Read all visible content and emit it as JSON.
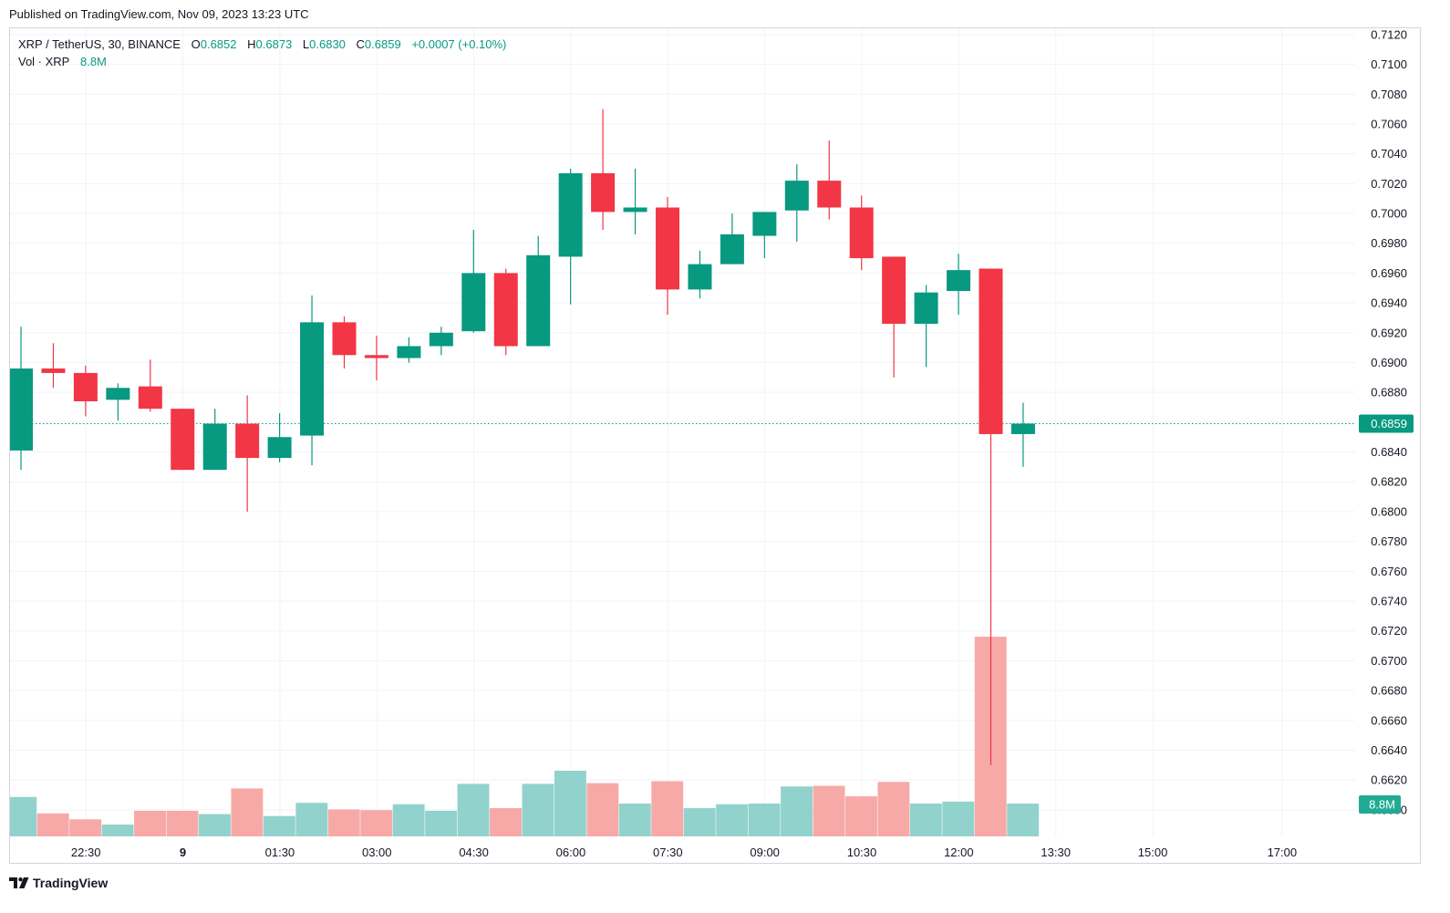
{
  "published": "Published on TradingView.com, Nov 09, 2023 13:23 UTC",
  "footer": {
    "brand": "TradingView",
    "logo_icon": "tradingview-logo-icon"
  },
  "legend": {
    "symbol": "XRP / TetherUS, 30, BINANCE",
    "open_label": "O",
    "open": "0.6852",
    "high_label": "H",
    "high": "0.6873",
    "low_label": "L",
    "low": "0.6830",
    "close_label": "C",
    "close": "0.6859",
    "change": "+0.0007 (+0.10%)",
    "vol_label": "Vol · XRP",
    "vol": "8.8M"
  },
  "colors": {
    "up": "#089981",
    "down": "#f23645",
    "vol_up": "#92d2cc",
    "vol_down": "#f7a9a7",
    "grid": "#f0f3fa",
    "last_price_line": "#089981"
  },
  "chart_data": {
    "type": "candlestick",
    "symbol": "XRP / TetherUS",
    "interval": "30",
    "exchange": "BINANCE",
    "price_badge": "0.6859",
    "volume_badge": "8.8M",
    "y_axis_ticks": [
      "0.7120",
      "0.7100",
      "0.7080",
      "0.7060",
      "0.7040",
      "0.7020",
      "0.7000",
      "0.6980",
      "0.6960",
      "0.6940",
      "0.6920",
      "0.6900",
      "0.6880",
      "0.6860",
      "0.6840",
      "0.6820",
      "0.6800",
      "0.6780",
      "0.6760",
      "0.6740",
      "0.6720",
      "0.6700",
      "0.6680",
      "0.6660",
      "0.6640",
      "0.6620",
      "0.6600"
    ],
    "x_axis_ticks": [
      {
        "label": "22:30",
        "index": 2
      },
      {
        "label": "9",
        "index": 5,
        "bold": true
      },
      {
        "label": "01:30",
        "index": 8
      },
      {
        "label": "03:00",
        "index": 11
      },
      {
        "label": "04:30",
        "index": 14
      },
      {
        "label": "06:00",
        "index": 17
      },
      {
        "label": "07:30",
        "index": 20
      },
      {
        "label": "09:00",
        "index": 23
      },
      {
        "label": "10:30",
        "index": 26
      },
      {
        "label": "12:00",
        "index": 29
      },
      {
        "label": "13:30",
        "index": 32
      },
      {
        "label": "15:00",
        "index": 35
      },
      {
        "label": "17:00",
        "index": 39
      }
    ],
    "ylim": [
      0.6595,
      0.7123
    ],
    "candles": [
      {
        "o": 0.6841,
        "h": 0.6924,
        "l": 0.6828,
        "c": 0.6896
      },
      {
        "o": 0.6896,
        "h": 0.6913,
        "l": 0.6883,
        "c": 0.6893
      },
      {
        "o": 0.6893,
        "h": 0.6898,
        "l": 0.6864,
        "c": 0.6874
      },
      {
        "o": 0.6875,
        "h": 0.6886,
        "l": 0.6861,
        "c": 0.6883
      },
      {
        "o": 0.6884,
        "h": 0.6902,
        "l": 0.6867,
        "c": 0.6869
      },
      {
        "o": 0.6869,
        "h": 0.6869,
        "l": 0.6828,
        "c": 0.6828
      },
      {
        "o": 0.6828,
        "h": 0.6869,
        "l": 0.6828,
        "c": 0.6859
      },
      {
        "o": 0.6859,
        "h": 0.6878,
        "l": 0.68,
        "c": 0.6836
      },
      {
        "o": 0.6836,
        "h": 0.6866,
        "l": 0.6833,
        "c": 0.685
      },
      {
        "o": 0.6851,
        "h": 0.6945,
        "l": 0.6831,
        "c": 0.6927
      },
      {
        "o": 0.6927,
        "h": 0.6931,
        "l": 0.6896,
        "c": 0.6905
      },
      {
        "o": 0.6905,
        "h": 0.6918,
        "l": 0.6888,
        "c": 0.6903
      },
      {
        "o": 0.6903,
        "h": 0.6917,
        "l": 0.69,
        "c": 0.6911
      },
      {
        "o": 0.6911,
        "h": 0.6924,
        "l": 0.6905,
        "c": 0.692
      },
      {
        "o": 0.6921,
        "h": 0.6989,
        "l": 0.692,
        "c": 0.696
      },
      {
        "o": 0.696,
        "h": 0.6963,
        "l": 0.6905,
        "c": 0.6911
      },
      {
        "o": 0.6911,
        "h": 0.6985,
        "l": 0.6911,
        "c": 0.6972
      },
      {
        "o": 0.6971,
        "h": 0.703,
        "l": 0.6939,
        "c": 0.7027
      },
      {
        "o": 0.7027,
        "h": 0.707,
        "l": 0.6989,
        "c": 0.7001
      },
      {
        "o": 0.7001,
        "h": 0.703,
        "l": 0.6986,
        "c": 0.7004
      },
      {
        "o": 0.7004,
        "h": 0.7011,
        "l": 0.6932,
        "c": 0.6949
      },
      {
        "o": 0.6949,
        "h": 0.6975,
        "l": 0.6943,
        "c": 0.6966
      },
      {
        "o": 0.6966,
        "h": 0.7,
        "l": 0.6966,
        "c": 0.6986
      },
      {
        "o": 0.6985,
        "h": 0.7,
        "l": 0.697,
        "c": 0.7001
      },
      {
        "o": 0.7002,
        "h": 0.7033,
        "l": 0.6981,
        "c": 0.7022
      },
      {
        "o": 0.7022,
        "h": 0.7049,
        "l": 0.6996,
        "c": 0.7004
      },
      {
        "o": 0.7004,
        "h": 0.7012,
        "l": 0.6962,
        "c": 0.697
      },
      {
        "o": 0.6971,
        "h": 0.6971,
        "l": 0.689,
        "c": 0.6926
      },
      {
        "o": 0.6926,
        "h": 0.6952,
        "l": 0.6897,
        "c": 0.6947
      },
      {
        "o": 0.6948,
        "h": 0.6973,
        "l": 0.6932,
        "c": 0.6962
      },
      {
        "o": 0.6963,
        "h": 0.6963,
        "l": 0.663,
        "c": 0.6852
      },
      {
        "o": 0.6852,
        "h": 0.6873,
        "l": 0.683,
        "c": 0.6859
      }
    ],
    "volume_rel": [
      0.6,
      0.35,
      0.26,
      0.18,
      0.39,
      0.39,
      0.34,
      0.73,
      0.31,
      0.51,
      0.41,
      0.4,
      0.49,
      0.39,
      0.8,
      0.43,
      0.8,
      1.0,
      0.81,
      0.5,
      0.84,
      0.43,
      0.49,
      0.5,
      0.76,
      0.77,
      0.61,
      0.83,
      0.5,
      0.53,
      3.04,
      0.5
    ],
    "grid": true,
    "legend_position": "top-left"
  }
}
